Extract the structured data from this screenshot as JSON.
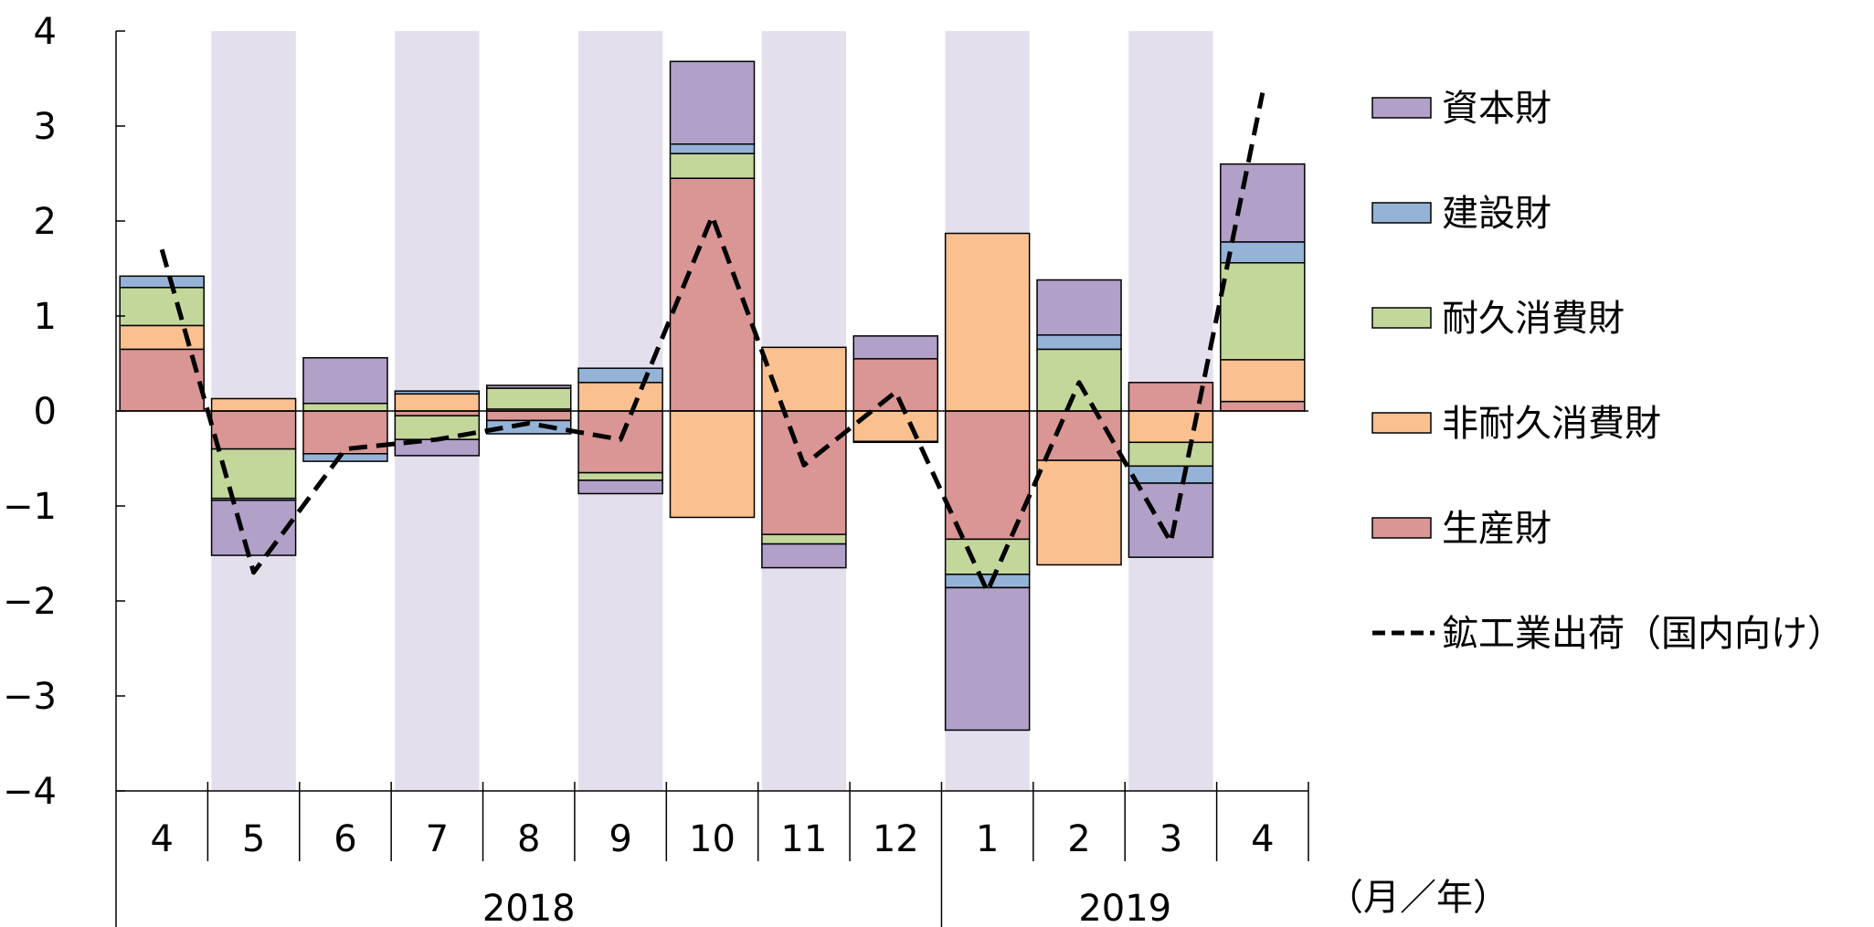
{
  "chart_data": {
    "type": "bar",
    "stacked": true,
    "categories": [
      "4",
      "5",
      "6",
      "7",
      "8",
      "9",
      "10",
      "11",
      "12",
      "1",
      "2",
      "3",
      "4"
    ],
    "years": [
      {
        "label": "2018",
        "start": 0,
        "end": 8
      },
      {
        "label": "2019",
        "start": 9,
        "end": 12
      }
    ],
    "x_unit_label": "（月／年）",
    "ylim": [
      -4,
      4
    ],
    "yticks": [
      "−4",
      "−3",
      "−2",
      "−1",
      "0",
      "1",
      "2",
      "3",
      "4"
    ],
    "ytick_values": [
      -4,
      -3,
      -2,
      -1,
      0,
      1,
      2,
      3,
      4
    ],
    "shaded_categories": [
      1,
      3,
      5,
      7,
      9,
      11
    ],
    "shade_color": "#e4dfec",
    "series": [
      {
        "name": "生産財",
        "color": "#da9694",
        "values": [
          0.65,
          -0.4,
          -0.45,
          -0.05,
          -0.1,
          -0.65,
          2.45,
          -1.3,
          0.55,
          -1.35,
          -0.52,
          0.3,
          0.1
        ]
      },
      {
        "name": "非耐久消費財",
        "color": "#fac090",
        "values": [
          0.25,
          0.13,
          0.0,
          0.18,
          0.02,
          0.3,
          -1.12,
          0.67,
          -0.32,
          1.87,
          -1.1,
          -0.33,
          0.44
        ]
      },
      {
        "name": "耐久消費財",
        "color": "#c4d79b",
        "values": [
          0.4,
          -0.52,
          0.08,
          -0.25,
          0.22,
          -0.08,
          0.26,
          -0.1,
          -0.01,
          -0.37,
          0.65,
          -0.25,
          1.02
        ]
      },
      {
        "name": "建設財",
        "color": "#95b3d7",
        "values": [
          0.12,
          -0.02,
          -0.08,
          0.03,
          -0.14,
          0.15,
          0.1,
          0.0,
          0.0,
          -0.14,
          0.15,
          -0.18,
          0.22
        ]
      },
      {
        "name": "資本財",
        "color": "#b1a0c7",
        "values": [
          0.0,
          -0.58,
          0.48,
          -0.17,
          0.03,
          -0.14,
          0.87,
          -0.25,
          0.24,
          -1.5,
          0.58,
          -0.78,
          0.82
        ]
      }
    ],
    "line": {
      "name": "鉱工業出荷（国内向け）",
      "color": "#000000",
      "style": "dashed",
      "values": [
        1.7,
        -1.7,
        -0.4,
        -0.3,
        -0.13,
        -0.3,
        2.05,
        -0.57,
        0.2,
        -1.9,
        0.3,
        -1.38,
        3.35
      ]
    },
    "legend_order": [
      4,
      3,
      2,
      1,
      0
    ],
    "legend_position": "right"
  }
}
